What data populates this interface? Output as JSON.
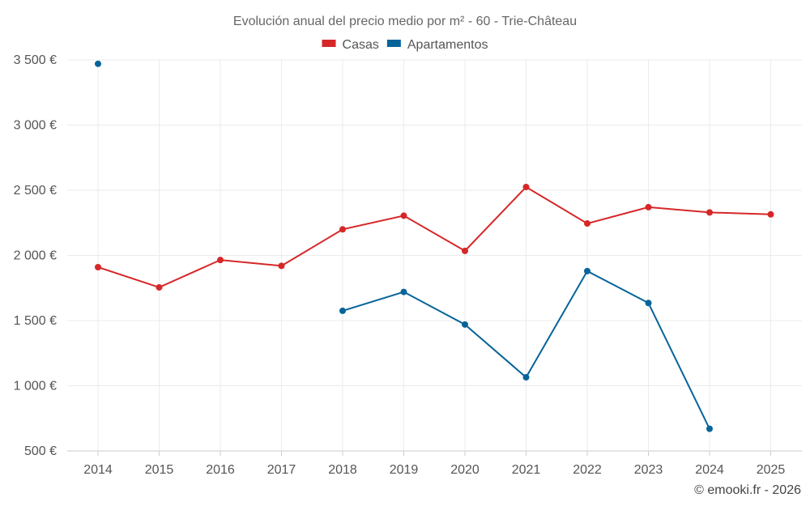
{
  "chart_data": {
    "type": "line",
    "title": "Evolución anual del precio medio por m² - 60 - Trie-Château",
    "categories": [
      "2014",
      "2015",
      "2016",
      "2017",
      "2018",
      "2019",
      "2020",
      "2021",
      "2022",
      "2023",
      "2024",
      "2025"
    ],
    "ylim": [
      500,
      3500
    ],
    "yticks": [
      3500,
      3000,
      2500,
      2000,
      1500,
      1000,
      500
    ],
    "ytick_labels": [
      "3 500 €",
      "3 000 €",
      "2 500 €",
      "2 000 €",
      "1 500 €",
      "1 000 €",
      "500 €"
    ],
    "grid": true,
    "legend_position": "top-center",
    "series": [
      {
        "name": "Casas",
        "color": "#d62728",
        "values": [
          1910,
          1755,
          1965,
          1920,
          2200,
          2305,
          2035,
          2525,
          2245,
          2370,
          2330,
          2315
        ]
      },
      {
        "name": "Apartamentos",
        "color": "#07649a",
        "values": [
          3470,
          null,
          null,
          null,
          1575,
          1720,
          1470,
          1065,
          1880,
          1635,
          670,
          null
        ]
      }
    ]
  },
  "credit": "© emooki.fr - 2026"
}
